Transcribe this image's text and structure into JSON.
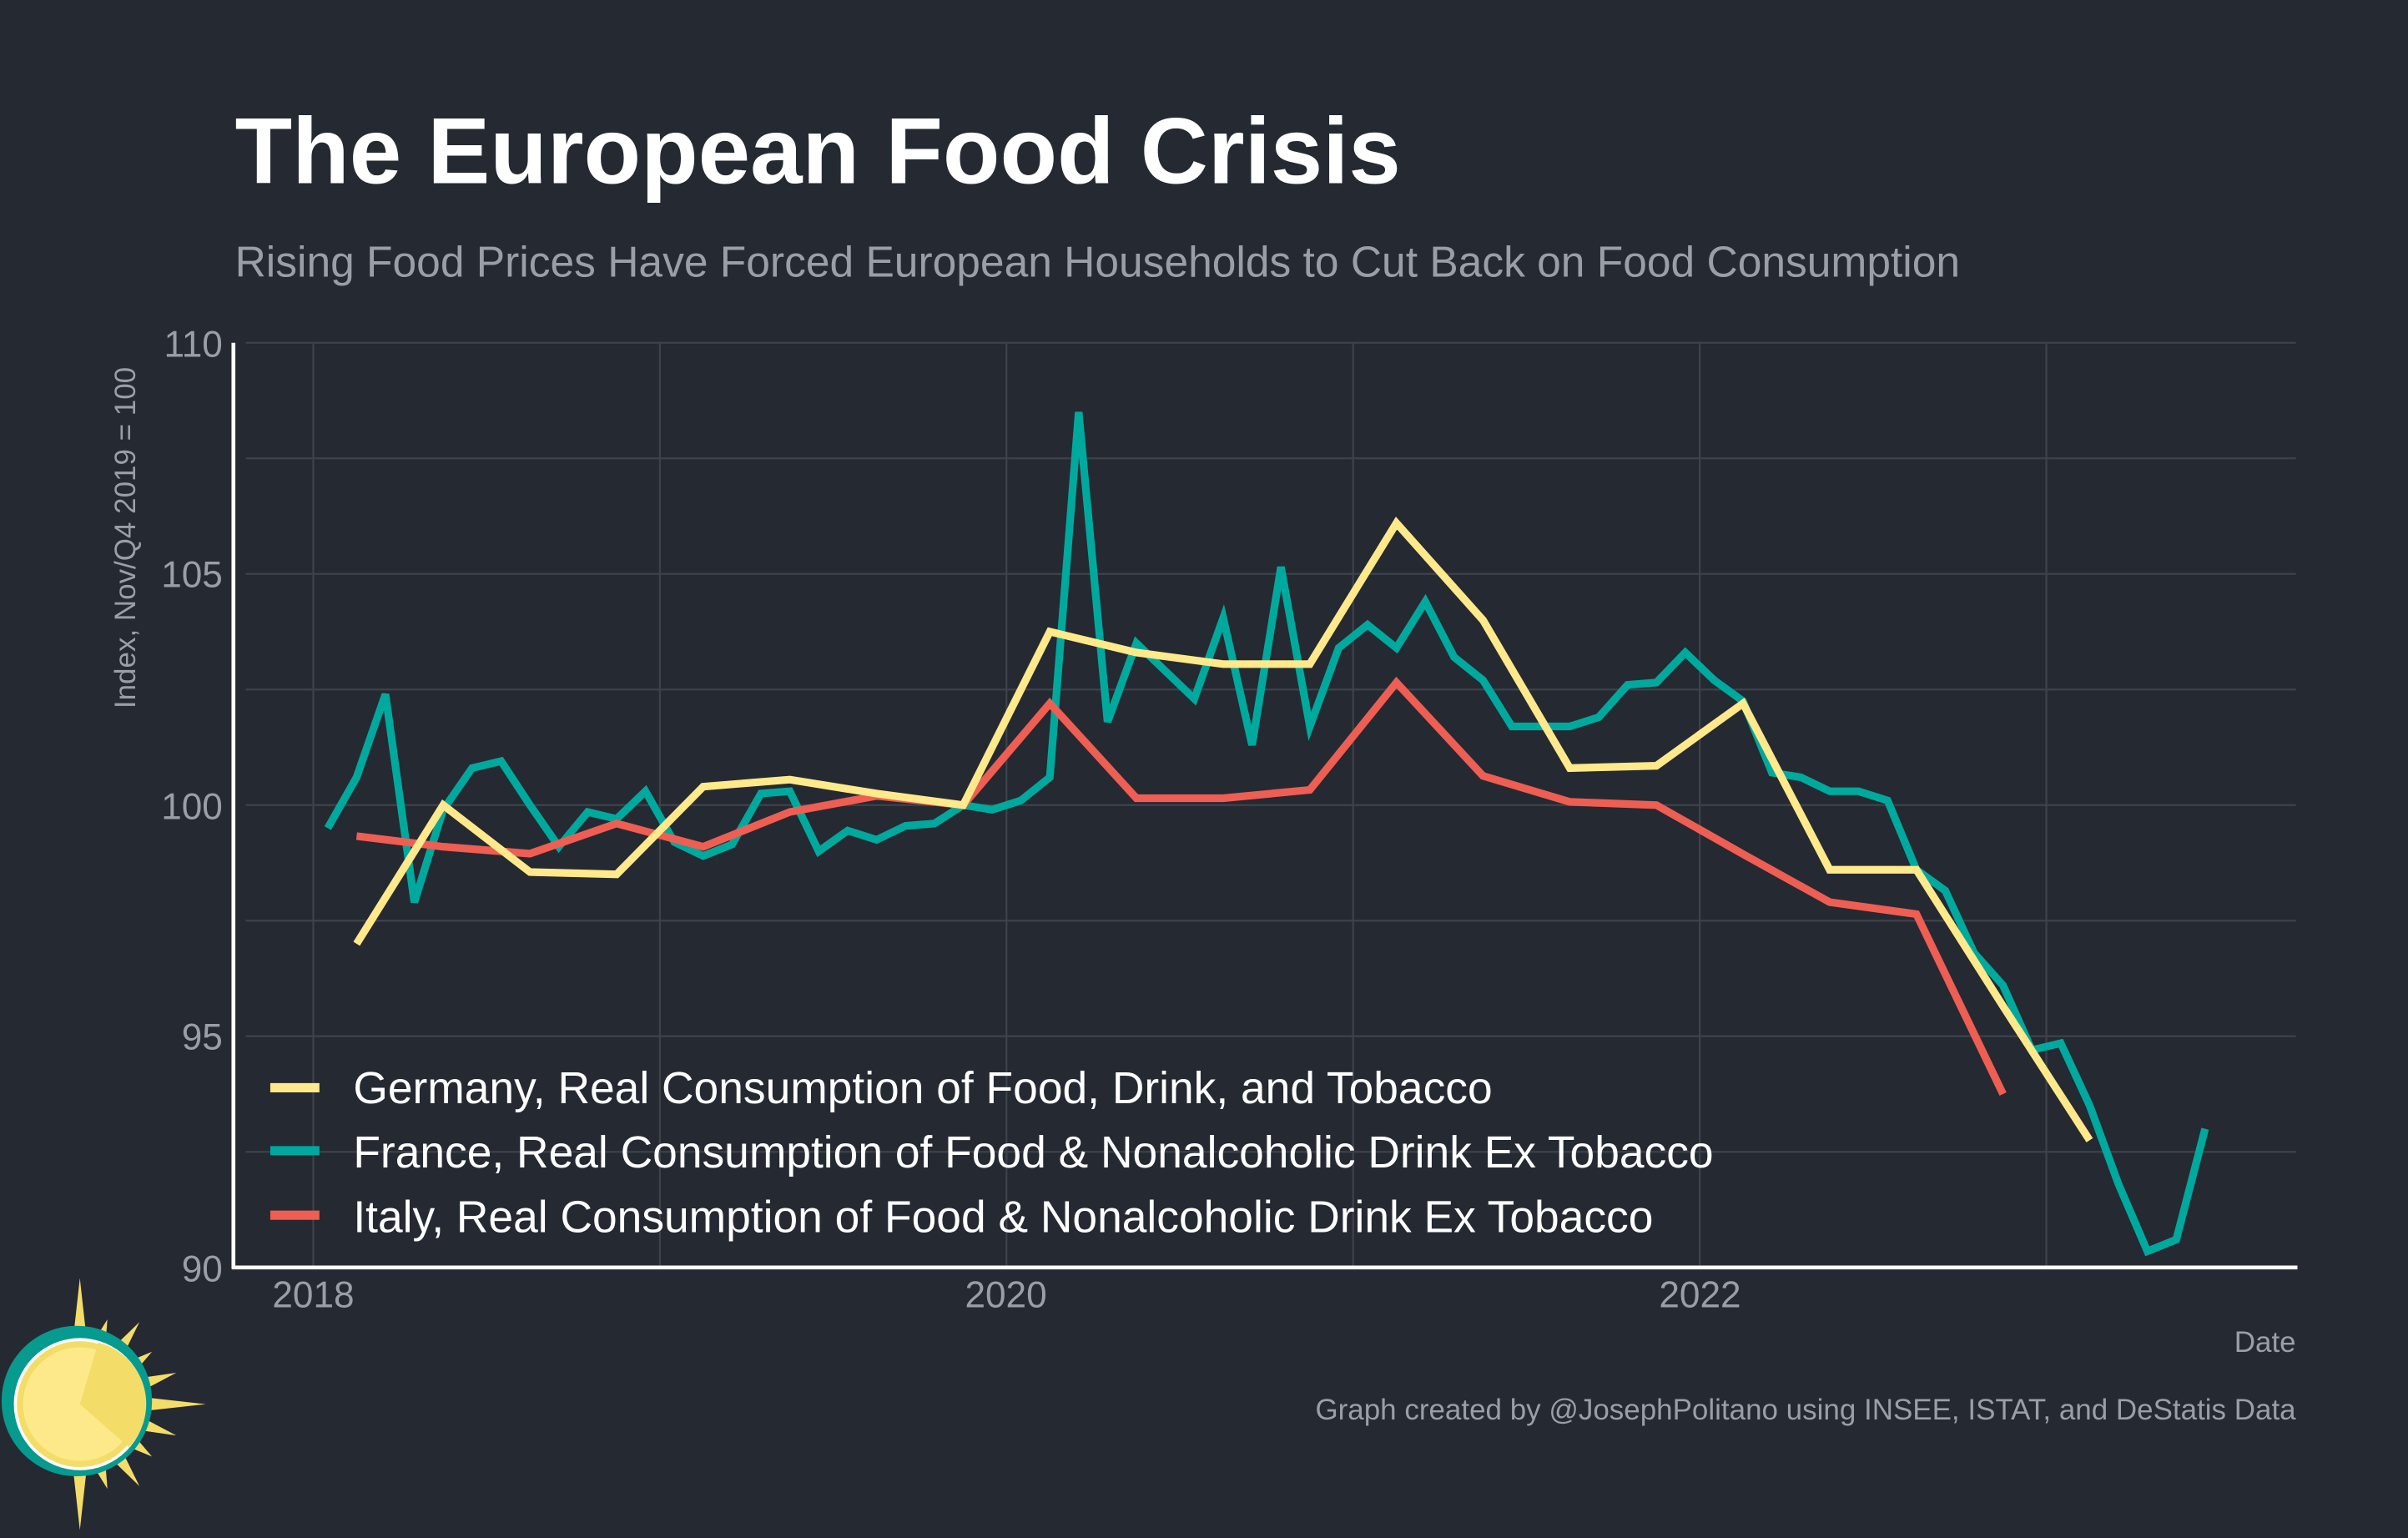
{
  "chart_data": {
    "type": "line",
    "title": "The European Food Crisis",
    "subtitle": "Rising Food Prices Have Forced European Households to Cut Back on Food Consumption",
    "xlabel": "Date",
    "ylabel": "Index, Nov/Q4 2019 = 100",
    "credit": "Graph created by @JosephPolitano using INSEE, ISTAT, and DeStatis Data",
    "ylim": [
      90,
      110
    ],
    "yticks": [
      "90",
      "95",
      "100",
      "105",
      "110"
    ],
    "xticks": [
      "2018",
      "2020",
      "2022"
    ],
    "grid": true,
    "legend_position": "bottom-left",
    "colors": {
      "background": "#252932",
      "grid": "#3d424b",
      "germany": "#ffe98a",
      "france": "#00a99d",
      "italy": "#ee5e52"
    },
    "series": [
      {
        "name": "Germany, Real Consumption of Food, Drink, and Tobacco",
        "color": "#ffe98a",
        "x": [
          "2018-02",
          "2018-05",
          "2018-08",
          "2018-11",
          "2019-02",
          "2019-05",
          "2019-08",
          "2019-11",
          "2020-02",
          "2020-05",
          "2020-08",
          "2020-11",
          "2021-02",
          "2021-05",
          "2021-08",
          "2021-11",
          "2022-02",
          "2022-05",
          "2022-08",
          "2022-11",
          "2023-02"
        ],
        "values": [
          97.0,
          100.0,
          98.55,
          98.5,
          100.4,
          100.55,
          100.25,
          100.0,
          103.75,
          103.3,
          103.05,
          103.05,
          106.1,
          104.0,
          100.8,
          100.85,
          102.2,
          98.6,
          98.6,
          95.65,
          92.75
        ]
      },
      {
        "name": "France, Real Consumption of Food & Nonalcoholic Drink Ex Tobacco",
        "color": "#00a99d",
        "x": [
          "2018-01",
          "2018-02",
          "2018-03",
          "2018-04",
          "2018-05",
          "2018-06",
          "2018-07",
          "2018-08",
          "2018-09",
          "2018-10",
          "2018-11",
          "2018-12",
          "2019-01",
          "2019-02",
          "2019-03",
          "2019-04",
          "2019-05",
          "2019-06",
          "2019-07",
          "2019-08",
          "2019-09",
          "2019-10",
          "2019-11",
          "2019-12",
          "2020-01",
          "2020-02",
          "2020-03",
          "2020-04",
          "2020-05",
          "2020-06",
          "2020-07",
          "2020-08",
          "2020-09",
          "2020-10",
          "2020-11",
          "2020-12",
          "2021-01",
          "2021-02",
          "2021-03",
          "2021-04",
          "2021-05",
          "2021-06",
          "2021-07",
          "2021-08",
          "2021-09",
          "2021-10",
          "2021-11",
          "2021-12",
          "2022-01",
          "2022-02",
          "2022-03",
          "2022-04",
          "2022-05",
          "2022-06",
          "2022-07",
          "2022-08",
          "2022-09",
          "2022-10",
          "2022-11",
          "2022-12",
          "2023-01",
          "2023-02",
          "2023-03",
          "2023-04",
          "2023-05",
          "2023-06"
        ],
        "values": [
          99.5,
          100.6,
          102.4,
          97.9,
          99.9,
          100.8,
          100.95,
          100.0,
          99.1,
          99.85,
          99.7,
          100.3,
          99.2,
          98.9,
          99.15,
          100.25,
          100.3,
          99.0,
          99.45,
          99.25,
          99.55,
          99.6,
          100.0,
          99.9,
          100.1,
          100.6,
          108.5,
          101.8,
          103.5,
          102.9,
          102.3,
          104.05,
          101.3,
          105.15,
          101.7,
          103.4,
          103.9,
          103.4,
          104.4,
          103.2,
          102.7,
          101.7,
          101.7,
          101.7,
          101.9,
          102.6,
          102.65,
          103.3,
          102.7,
          102.25,
          100.7,
          100.6,
          100.3,
          100.3,
          100.1,
          98.6,
          98.15,
          96.8,
          96.1,
          94.7,
          94.85,
          93.5,
          91.8,
          90.35,
          90.6,
          93.0
        ]
      },
      {
        "name": "Italy, Real Consumption of Food & Nonalcoholic Drink Ex Tobacco",
        "color": "#ee5e52",
        "x": [
          "2018-02",
          "2018-05",
          "2018-08",
          "2018-11",
          "2019-02",
          "2019-05",
          "2019-08",
          "2019-11",
          "2020-02",
          "2020-05",
          "2020-08",
          "2020-11",
          "2021-02",
          "2021-05",
          "2021-08",
          "2021-11",
          "2022-02",
          "2022-05",
          "2022-08",
          "2022-11"
        ],
        "values": [
          99.33,
          99.1,
          98.95,
          99.6,
          99.1,
          99.85,
          100.2,
          100.0,
          102.2,
          100.15,
          100.15,
          100.33,
          102.65,
          100.63,
          100.07,
          100.0,
          98.94,
          97.9,
          97.64,
          93.75
        ]
      }
    ]
  }
}
